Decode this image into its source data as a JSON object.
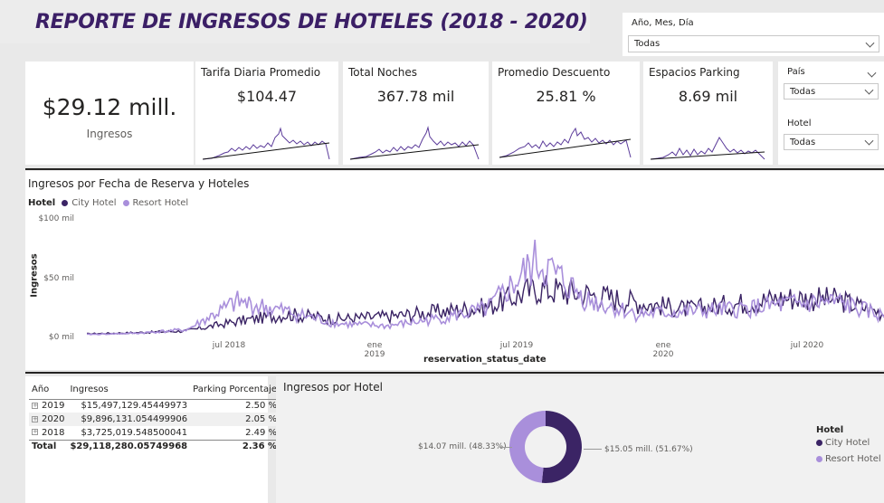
{
  "header": {
    "title": "REPORTE DE INGRESOS DE HOTELES (2018 - 2020)"
  },
  "filters": {
    "date": {
      "label": "Año, Mes, Día",
      "value": "Todas"
    },
    "country": {
      "label": "País",
      "value": "Todas"
    },
    "hotel": {
      "label": "Hotel",
      "value": "Todas"
    }
  },
  "total_card": {
    "value": "$29.12 mill.",
    "label": "Ingresos"
  },
  "kpis": [
    {
      "title": "Tarifa Diaria Promedio",
      "value": "$104.47"
    },
    {
      "title": "Total Noches",
      "value": "367.78 mil"
    },
    {
      "title": "Promedio Descuento",
      "value": "25.81 %"
    },
    {
      "title": "Espacios Parking",
      "value": "8.69 mil"
    }
  ],
  "colors": {
    "city": "#3b2465",
    "resort": "#a98fdb",
    "title": "#3b1f66"
  },
  "line_chart": {
    "title": "Ingresos por Fecha de Reserva y Hoteles",
    "legend_title": "Hotel",
    "ylabel": "Ingresos",
    "xlabel": "reservation_status_date",
    "y_ticks": [
      "$100 mil",
      "$50 mil",
      "$0 mil"
    ],
    "x_ticks": [
      "jul 2018",
      "ene 2019",
      "jul 2019",
      "ene 2020",
      "jul 2020"
    ]
  },
  "chart_data": [
    {
      "type": "line",
      "title": "Ingresos por Fecha de Reserva y Hoteles",
      "xlabel": "reservation_status_date",
      "ylabel": "Ingresos",
      "ylim": [
        0,
        100000
      ],
      "x": [
        "2018-01",
        "2018-03",
        "2018-05",
        "2018-07",
        "2018-09",
        "2018-11",
        "2019-01",
        "2019-03",
        "2019-05",
        "2019-07",
        "2019-09",
        "2019-11",
        "2020-01",
        "2020-03",
        "2020-05",
        "2020-07",
        "2020-09"
      ],
      "series": [
        {
          "name": "City Hotel",
          "values": [
            1500,
            2500,
            4000,
            12000,
            18000,
            14000,
            16000,
            20000,
            24000,
            40000,
            35000,
            28000,
            22000,
            27000,
            32000,
            30000,
            18000
          ]
        },
        {
          "name": "Resort Hotel",
          "values": [
            1000,
            2000,
            5000,
            28000,
            20000,
            10000,
            8000,
            14000,
            22000,
            62000,
            30000,
            18000,
            20000,
            22000,
            26000,
            28000,
            15000
          ]
        }
      ]
    },
    {
      "type": "pie",
      "title": "Ingresos por Hotel",
      "categories": [
        "City Hotel",
        "Resort Hotel"
      ],
      "values": [
        15.05,
        14.07
      ],
      "labels": [
        "$15.05 mill. (51.67%)",
        "$14.07 mill. (48.33%)"
      ]
    },
    {
      "type": "table",
      "columns": [
        "Año",
        "Ingresos",
        "Parking Porcentaje"
      ],
      "rows": [
        [
          "2019",
          "$15,497,129.45449973",
          "2.50 %"
        ],
        [
          "2020",
          "$9,896,131.054499906",
          "2.05 %"
        ],
        [
          "2018",
          "$3,725,019.548500041",
          "2.49 %"
        ]
      ],
      "total": [
        "Total",
        "$29,118,280.05749968",
        "2.36 %"
      ]
    }
  ],
  "table": {
    "headers": {
      "year": "Año",
      "income": "Ingresos",
      "parking": "Parking Porcentaje"
    },
    "rows": [
      {
        "year": "2019",
        "income": "$15,497,129.45449973",
        "parking": "2.50 %"
      },
      {
        "year": "2020",
        "income": "$9,896,131.054499906",
        "parking": "2.05 %"
      },
      {
        "year": "2018",
        "income": "$3,725,019.548500041",
        "parking": "2.49 %"
      }
    ],
    "total": {
      "label": "Total",
      "income": "$29,118,280.05749968",
      "parking": "2.36 %"
    }
  },
  "donut": {
    "title": "Ingresos por Hotel",
    "city_label": "$15.05 mill. (51.67%)",
    "resort_label": "$14.07 mill. (48.33%)",
    "legend_title": "Hotel",
    "legend": [
      "City Hotel",
      "Resort Hotel"
    ]
  }
}
